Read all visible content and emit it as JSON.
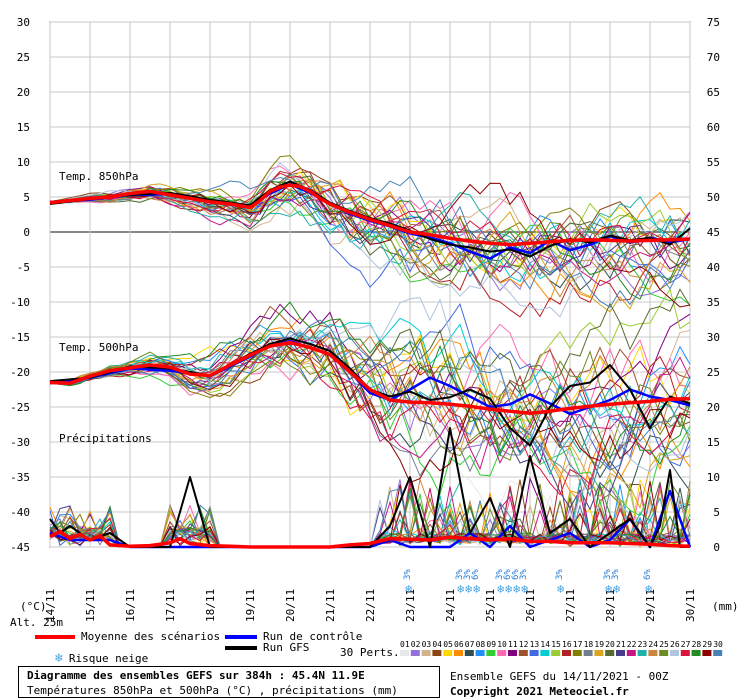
{
  "chart_data": {
    "type": "line",
    "title": "Diagramme des ensembles GEFS sur 384h : 45.4N 11.9E",
    "subtitle": "Températures 850hPa et 500hPa (°C) , précipitations (mm)",
    "ensemble_label": "Ensemble GEFS du 14/11/2021 - 00Z",
    "copyright": "Copyright 2021 Meteociel.fr",
    "altitude": "Alt. 25m",
    "left_axis_unit": "(°C)",
    "right_axis_unit": "(mm)",
    "left_ticks": [
      "30",
      "25",
      "20",
      "15",
      "10",
      "5",
      "0",
      "-5",
      "-10",
      "-15",
      "-20",
      "-25",
      "-30",
      "-35",
      "-40",
      "-45"
    ],
    "right_ticks": [
      "75",
      "70",
      "65",
      "60",
      "55",
      "50",
      "45",
      "40",
      "35",
      "30",
      "25",
      "20",
      "15",
      "10",
      "5",
      "0"
    ],
    "ylim_temp": [
      -45,
      30
    ],
    "x_labels": [
      "14/11",
      "15/11",
      "16/11",
      "17/11",
      "18/11",
      "19/11",
      "20/11",
      "21/11",
      "22/11",
      "23/11",
      "24/11",
      "25/11",
      "26/11",
      "27/11",
      "28/11",
      "29/11",
      "30/11"
    ],
    "section_labels": {
      "t850": "Temp. 850hPa",
      "t500": "Temp. 500hPa",
      "precip": "Précipitations"
    },
    "series": [
      {
        "name": "Moyenne des scénarios (850hPa)",
        "color": "#ff0000",
        "x": [
          0,
          0.5,
          1,
          1.5,
          2,
          2.5,
          3,
          3.5,
          4,
          4.5,
          5,
          5.25,
          5.5,
          5.75,
          6,
          6.25,
          6.5,
          6.75,
          7,
          7.5,
          8,
          8.5,
          9,
          9.5,
          10,
          10.5,
          11,
          11.5,
          12,
          12.5,
          13,
          13.5,
          14,
          14.5,
          15,
          15.5,
          16
        ],
        "values": [
          4.2,
          4.5,
          4.8,
          5.0,
          5.5,
          5.8,
          5.3,
          4.8,
          4.3,
          4.0,
          3.5,
          4.5,
          5.8,
          6.4,
          6.7,
          6.5,
          5.8,
          4.8,
          4.0,
          2.8,
          1.8,
          0.9,
          0.0,
          -0.4,
          -0.9,
          -1.3,
          -1.6,
          -1.8,
          -1.6,
          -1.4,
          -1.2,
          -1.1,
          -1.2,
          -1.3,
          -1.2,
          -1.1,
          -1.0
        ]
      },
      {
        "name": "Run GFS (850hPa)",
        "color": "#000000",
        "x": [
          0,
          1,
          2,
          3,
          4,
          5,
          5.5,
          6,
          6.5,
          7,
          7.5,
          8,
          8.5,
          9,
          9.5,
          10,
          10.5,
          11,
          11.5,
          12,
          12.5,
          13,
          13.5,
          14,
          14.5,
          15,
          15.5,
          16
        ],
        "values": [
          4.0,
          4.7,
          5.3,
          5.6,
          4.6,
          3.8,
          6.0,
          7.2,
          6.0,
          4.2,
          3.0,
          2.0,
          1.2,
          0.2,
          -1.0,
          -1.8,
          -2.2,
          -2.8,
          -2.5,
          -3.5,
          -2.0,
          -1.0,
          -1.5,
          -0.5,
          -1.2,
          -0.8,
          -1.8,
          0.5
        ]
      },
      {
        "name": "Run de contrôle (850hPa)",
        "color": "#0000ff",
        "x": [
          0,
          1,
          2,
          3,
          4,
          5,
          5.5,
          6,
          6.5,
          7,
          7.5,
          8,
          8.5,
          9,
          9.5,
          10,
          10.5,
          11,
          11.5,
          12,
          12.5,
          13,
          13.5,
          14,
          14.5,
          15,
          15.5,
          16
        ],
        "values": [
          4.3,
          4.6,
          5.3,
          5.4,
          4.5,
          3.6,
          5.5,
          6.8,
          5.6,
          4.1,
          2.6,
          1.6,
          0.8,
          -0.2,
          -0.8,
          -1.6,
          -2.8,
          -3.8,
          -2.2,
          -3.0,
          -1.2,
          -2.6,
          -1.8,
          -0.6,
          -1.5,
          -0.8,
          -1.5,
          -1.0
        ]
      },
      {
        "name": "Moyenne des scénarios (500hPa)",
        "color": "#ff0000",
        "x": [
          0,
          0.5,
          1,
          1.5,
          2,
          2.5,
          3,
          3.5,
          4,
          4.5,
          5,
          5.5,
          6,
          6.5,
          7,
          7.5,
          8,
          8.5,
          9,
          9.5,
          10,
          10.5,
          11,
          11.5,
          12,
          12.5,
          13,
          13.5,
          14,
          14.5,
          15,
          15.5,
          16
        ],
        "values": [
          -21.5,
          -21.6,
          -20.6,
          -19.8,
          -19.4,
          -19.0,
          -19.3,
          -20.3,
          -20.5,
          -19.0,
          -17.6,
          -16.3,
          -15.8,
          -16.5,
          -17.5,
          -20.0,
          -22.5,
          -24.0,
          -24.3,
          -24.4,
          -24.6,
          -24.9,
          -25.3,
          -25.6,
          -25.9,
          -25.6,
          -25.2,
          -24.9,
          -24.6,
          -24.4,
          -24.2,
          -23.9,
          -23.8
        ]
      },
      {
        "name": "Run GFS (500hPa)",
        "color": "#000000",
        "x": [
          0,
          1,
          2,
          3,
          4,
          5,
          5.5,
          6,
          6.5,
          7,
          7.5,
          8,
          8.5,
          9,
          9.5,
          10,
          10.5,
          11,
          11.5,
          12,
          12.5,
          13,
          13.5,
          14,
          14.5,
          15,
          15.5,
          16
        ],
        "values": [
          -21.3,
          -20.8,
          -19.2,
          -19.5,
          -20.5,
          -17.4,
          -16.0,
          -15.2,
          -16.0,
          -17.0,
          -19.5,
          -22.5,
          -23.5,
          -22.8,
          -24.0,
          -23.6,
          -22.5,
          -23.8,
          -28.0,
          -30.5,
          -25.0,
          -22.0,
          -21.5,
          -19.0,
          -22.5,
          -28.0,
          -23.5,
          -24.5
        ]
      },
      {
        "name": "Run de contrôle (500hPa)",
        "color": "#0000ff",
        "x": [
          0,
          1,
          2,
          3,
          4,
          5,
          5.5,
          6,
          6.5,
          7,
          7.5,
          8,
          8.5,
          9,
          9.5,
          10,
          10.5,
          11,
          11.5,
          12,
          12.5,
          13,
          13.5,
          14,
          14.5,
          15,
          15.5,
          16
        ],
        "values": [
          -21.6,
          -20.8,
          -19.5,
          -19.8,
          -20.6,
          -17.8,
          -16.2,
          -15.6,
          -16.5,
          -17.6,
          -20.0,
          -23.0,
          -24.0,
          -22.5,
          -20.8,
          -22.0,
          -23.5,
          -25.0,
          -24.6,
          -23.2,
          -24.5,
          -26.0,
          -25.0,
          -24.0,
          -22.5,
          -23.5,
          -24.0,
          -24.8
        ]
      },
      {
        "name": "Moyenne des scénarios (précipitations, mm)",
        "color": "#ff0000",
        "x": [
          0,
          0.25,
          0.5,
          0.75,
          1,
          1.25,
          1.5,
          2,
          2.5,
          3,
          3.25,
          3.5,
          4,
          4.5,
          5,
          6,
          7,
          7.5,
          8,
          8.5,
          9,
          9.5,
          10,
          10.5,
          11,
          11.5,
          12,
          12.5,
          13,
          13.5,
          14,
          14.5,
          15,
          15.5,
          16
        ],
        "values": [
          1.5,
          2.2,
          1.2,
          1.8,
          1.0,
          1.6,
          0.3,
          0.1,
          0.2,
          0.6,
          1.2,
          0.5,
          0.2,
          0.1,
          0.0,
          0.0,
          0.0,
          0.3,
          0.5,
          1.2,
          1.1,
          1.0,
          1.4,
          1.2,
          1.0,
          1.2,
          0.8,
          0.8,
          0.6,
          0.6,
          0.6,
          0.5,
          0.4,
          0.2,
          0.1
        ]
      },
      {
        "name": "Run GFS (précipitations, mm)",
        "color": "#000000",
        "x": [
          0,
          0.25,
          0.5,
          1,
          1.5,
          2,
          3,
          3.5,
          4,
          5,
          7,
          8,
          8.5,
          9,
          9.5,
          10,
          10.5,
          11,
          11.5,
          12,
          12.5,
          13,
          13.5,
          14,
          14.5,
          15,
          15.25,
          15.5,
          15.75,
          16
        ],
        "values": [
          4,
          2,
          3,
          1,
          2,
          0,
          0,
          10,
          0,
          0,
          0,
          0,
          3,
          10,
          0,
          17,
          2,
          7,
          0,
          13,
          2,
          4,
          0,
          2,
          4,
          0,
          3,
          11,
          0,
          0
        ]
      },
      {
        "name": "Run de contrôle (précipitations, mm)",
        "color": "#0000ff",
        "x": [
          0,
          0.5,
          1,
          1.5,
          2,
          3,
          4,
          5,
          7,
          8,
          8.5,
          9,
          10,
          10.5,
          11,
          11.5,
          12,
          12.5,
          13,
          13.5,
          14,
          14.5,
          15,
          15.5,
          16
        ],
        "values": [
          2,
          1,
          1,
          1,
          0,
          0,
          0,
          0,
          0,
          0,
          1,
          0,
          0,
          2,
          0,
          3,
          0,
          1,
          2,
          0,
          1,
          4,
          0,
          8,
          0
        ]
      }
    ],
    "snow_risk": {
      "label": "3%",
      "markers": [
        {
          "x": 9.0,
          "labels": [
            "3%"
          ]
        },
        {
          "x": 10.3,
          "labels": [
            "3%",
            "3%",
            "6%"
          ]
        },
        {
          "x": 11.3,
          "labels": [
            "3%",
            "6%",
            "6%",
            "3%"
          ]
        },
        {
          "x": 12.8,
          "labels": [
            "3%"
          ]
        },
        {
          "x": 14.0,
          "labels": [
            "3%",
            "3%"
          ]
        },
        {
          "x": 15.0,
          "labels": [
            "6%"
          ]
        }
      ]
    },
    "member_colors": [
      "#e8e8e8",
      "#9370db",
      "#d2b48c",
      "#8b4513",
      "#ffd700",
      "#ff8c00",
      "#2f4f4f",
      "#1e90ff",
      "#32cd32",
      "#ff69b4",
      "#800080",
      "#a0522d",
      "#4169e1",
      "#00ced1",
      "#9acd32",
      "#b22222",
      "#808000",
      "#708090",
      "#daa520",
      "#556b2f",
      "#483d8b",
      "#c71585",
      "#20b2aa",
      "#cd853f",
      "#6b8e23",
      "#b0c4de",
      "#dc143c",
      "#228b22",
      "#8b0000",
      "#4682b4"
    ]
  },
  "legend": {
    "mean": "Moyenne des scénarios",
    "control": "Run de contrôle",
    "gfs": "Run GFS",
    "snow": "Risque neige",
    "perts": "30 Perts.",
    "member_numbers": [
      "01",
      "02",
      "03",
      "04",
      "05",
      "06",
      "07",
      "08",
      "09",
      "10",
      "11",
      "12",
      "13",
      "14",
      "15",
      "16",
      "17",
      "18",
      "19",
      "20",
      "21",
      "22",
      "23",
      "24",
      "25",
      "26",
      "27",
      "28",
      "29",
      "30"
    ]
  }
}
